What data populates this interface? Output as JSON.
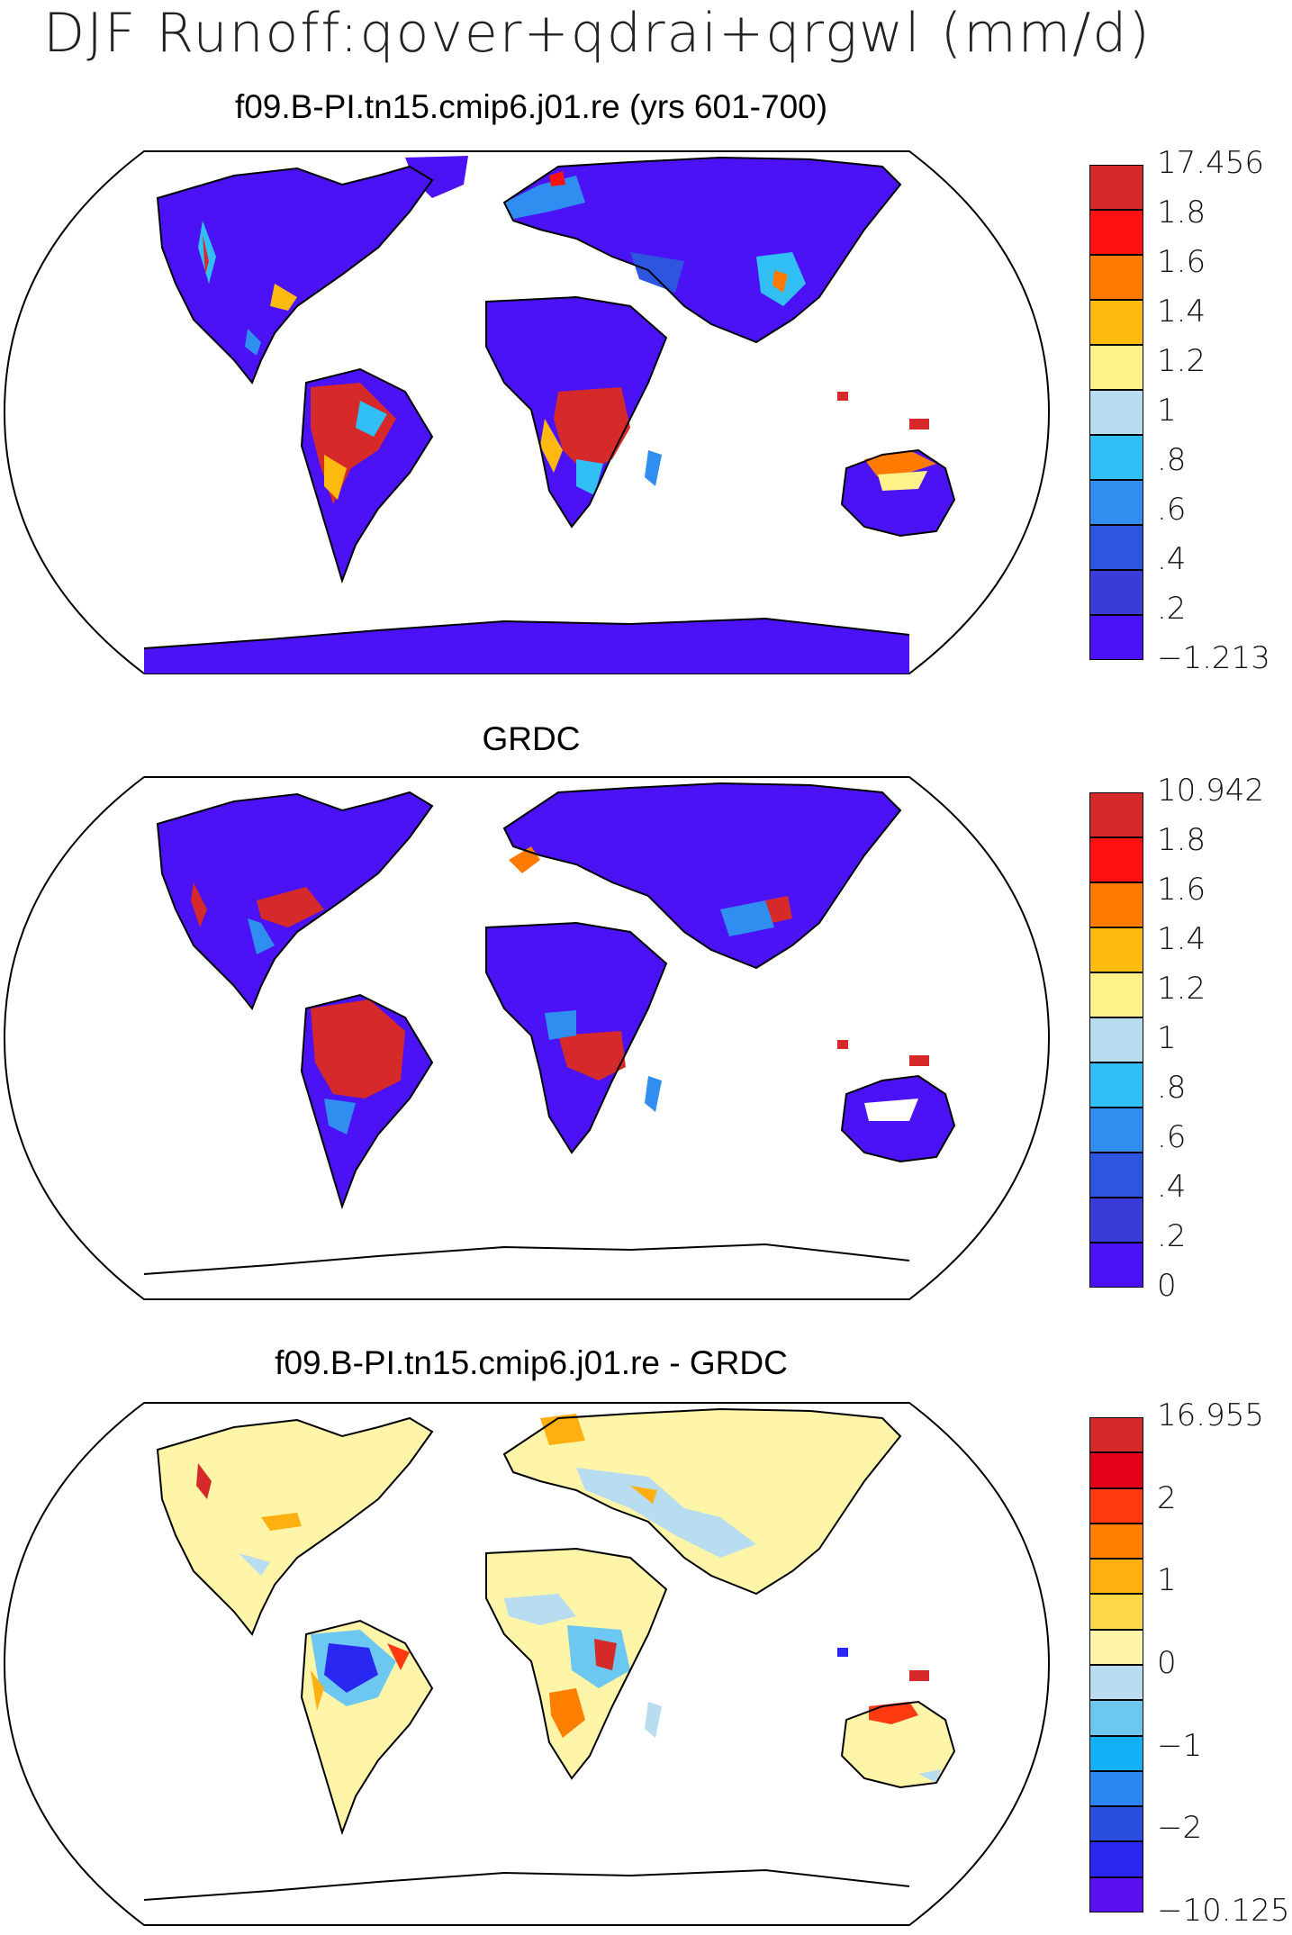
{
  "title": "DJF Runoff:qover+qdrai+qrgwl (mm/d)",
  "panels": [
    {
      "title": "f09.B-PI.tn15.cmip6.j01.re (yrs 601-700)",
      "colorbar": {
        "labels": [
          "17.456",
          "1.8",
          "1.6",
          "1.4",
          "1.2",
          "1",
          ".8",
          ".6",
          ".4",
          ".2",
          "−1.213"
        ],
        "colors": [
          "#d62a2a",
          "#ff1010",
          "#ff7a00",
          "#ffba10",
          "#fff18a",
          "#b8dcf0",
          "#32bff5",
          "#2f8ef0",
          "#2e55e0",
          "#3a3cd8",
          "#4a12f5"
        ]
      }
    },
    {
      "title": "GRDC",
      "colorbar": {
        "labels": [
          "10.942",
          "1.8",
          "1.6",
          "1.4",
          "1.2",
          "1",
          ".8",
          ".6",
          ".4",
          ".2",
          "0"
        ],
        "colors": [
          "#d62a2a",
          "#ff1010",
          "#ff7a00",
          "#ffba10",
          "#fff18a",
          "#b8dcf0",
          "#32bff5",
          "#2f8ef0",
          "#2e55e0",
          "#3a3cd8",
          "#4a12f5"
        ]
      }
    },
    {
      "title": "f09.B-PI.tn15.cmip6.j01.re - GRDC",
      "colorbar": {
        "labels": [
          "16.955",
          "2",
          "1",
          "0",
          "−1",
          "−2",
          "−10.125"
        ],
        "colors": [
          "#d62a2a",
          "#e3001a",
          "#ff3a10",
          "#ff8000",
          "#ffb010",
          "#ffd84a",
          "#fff5a8",
          "#b8dcf0",
          "#6cc8f0",
          "#12b0f5",
          "#2a86f0",
          "#2a4ee0",
          "#2a28f0",
          "#5a10f0"
        ]
      }
    }
  ]
}
